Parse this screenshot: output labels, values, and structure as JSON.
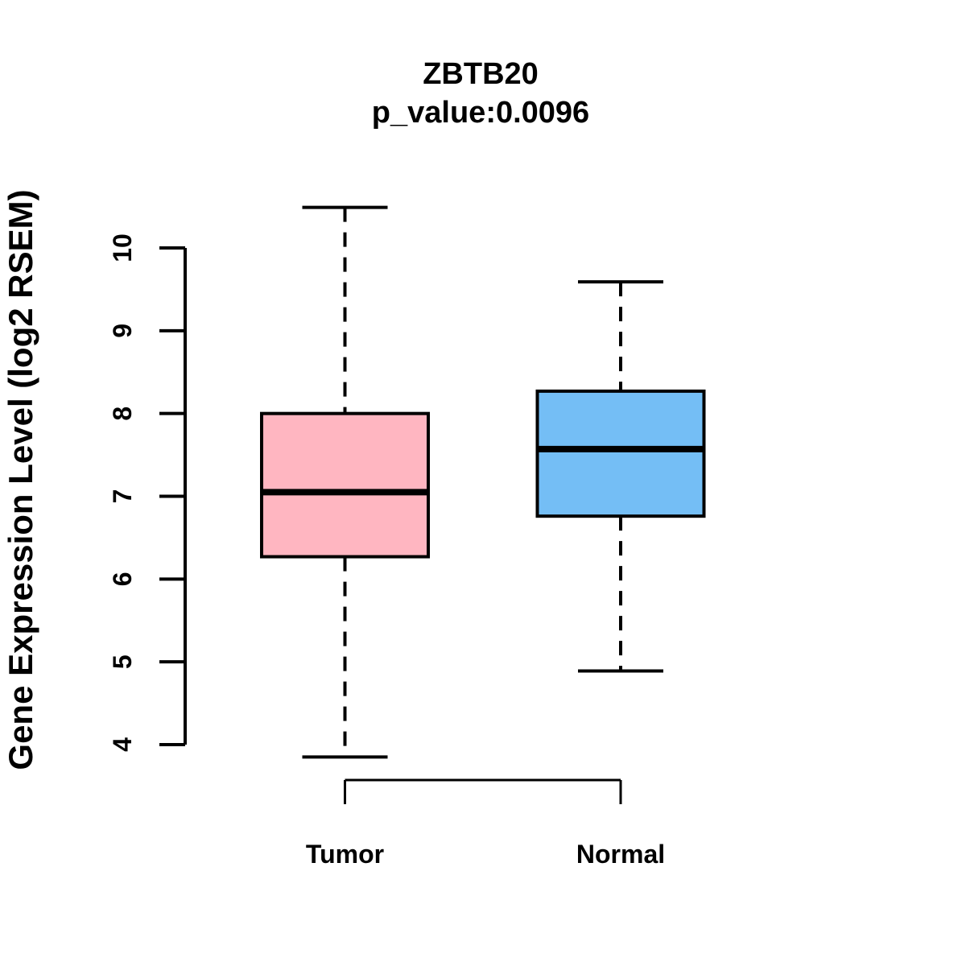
{
  "chart_data": {
    "type": "boxplot",
    "title": "ZBTB20",
    "subtitle": "p_value:0.0096",
    "ylabel": "Gene Expression Level (log2 RSEM)",
    "xlabel": "",
    "categories": [
      "Tumor",
      "Normal"
    ],
    "y_ticks": [
      4,
      5,
      6,
      7,
      8,
      9,
      10
    ],
    "y_axis_range": [
      4,
      10
    ],
    "grid": false,
    "legend": "none",
    "orientation": "vertical",
    "series": [
      {
        "name": "Tumor",
        "fill_color": "#FFB6C1",
        "whisker_low": 3.85,
        "q1": 6.27,
        "median": 7.05,
        "q3": 8.0,
        "whisker_high": 10.49
      },
      {
        "name": "Normal",
        "fill_color": "#74BEF5",
        "whisker_low": 4.89,
        "q1": 6.76,
        "median": 7.57,
        "q3": 8.27,
        "whisker_high": 9.59
      }
    ],
    "stroke_color": "#000000",
    "background_color": "#FFFFFF"
  }
}
